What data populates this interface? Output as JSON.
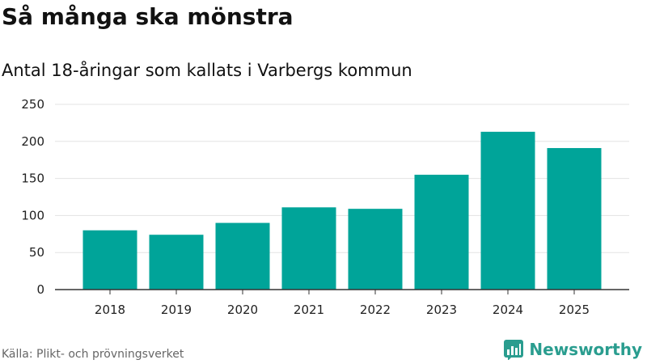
{
  "title": "Så många ska mönstra",
  "subtitle": "Antal 18-åringar som kallats i Varbergs kommun",
  "source": "Källa: Plikt- och prövningsverket",
  "brand": {
    "name": "Newsworthy",
    "logo_icon": "bar-chart-logo-icon",
    "color": "#2a9d8f"
  },
  "chart_data": {
    "type": "bar",
    "categories": [
      "2018",
      "2019",
      "2020",
      "2021",
      "2022",
      "2023",
      "2024",
      "2025"
    ],
    "values": [
      80,
      74,
      90,
      111,
      109,
      155,
      213,
      191
    ],
    "ylim": [
      0,
      250
    ],
    "yticks": [
      0,
      50,
      100,
      150,
      200,
      250
    ],
    "grid": true,
    "bar_color": "#00a499",
    "legend": "none"
  }
}
